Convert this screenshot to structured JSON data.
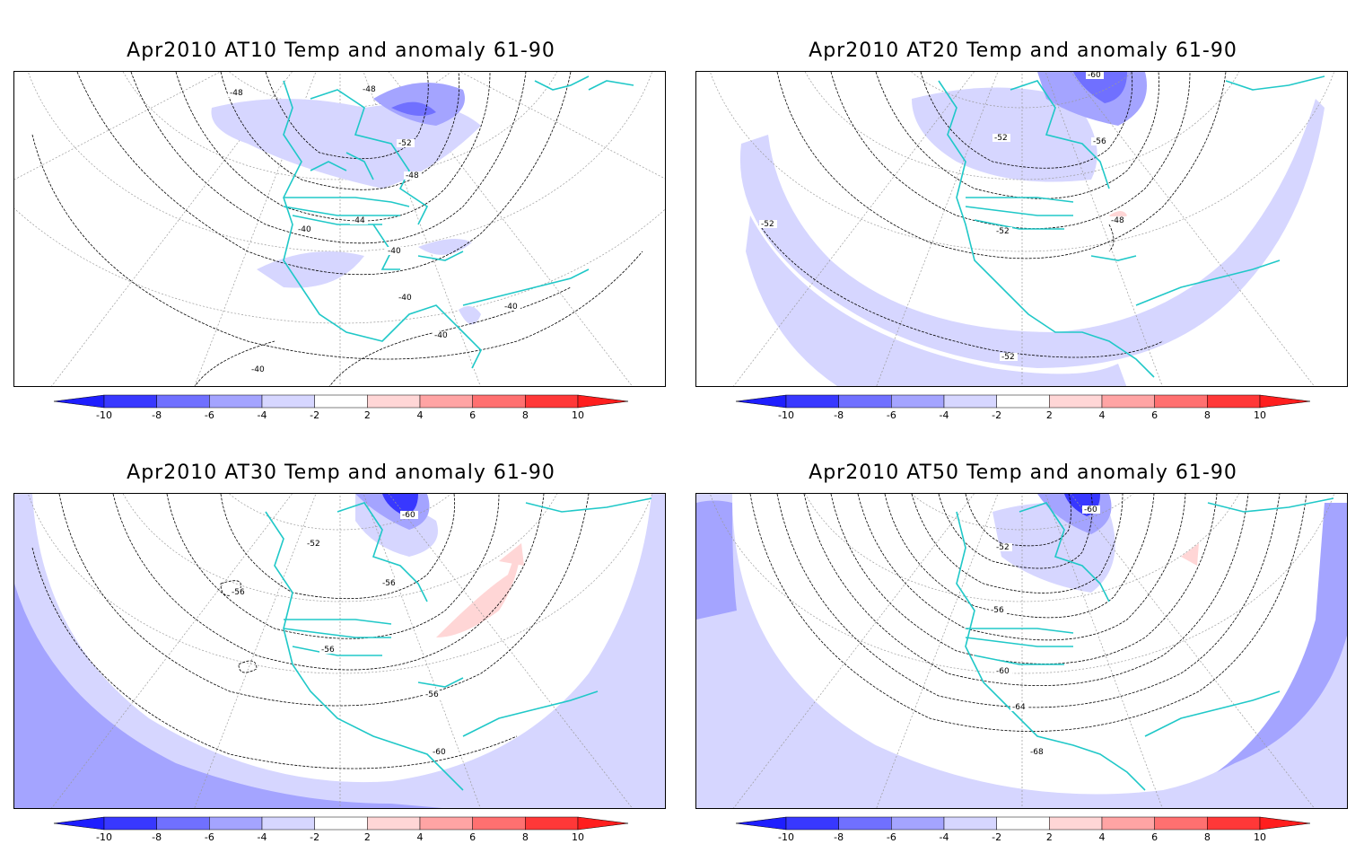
{
  "panels": [
    {
      "title": "Apr2010 AT10 Temp and anomaly 61-90",
      "contour_labels": [
        "-48",
        "-48",
        "-52",
        "-48",
        "-44",
        "-40",
        "-40",
        "-40",
        "-40",
        "-40",
        "-40"
      ]
    },
    {
      "title": "Apr2010 AT20 Temp and anomaly 61-90",
      "contour_labels": [
        "-60",
        "-52",
        "-56",
        "-52",
        "-52",
        "-48",
        "-52"
      ]
    },
    {
      "title": "Apr2010 AT30 Temp and anomaly 61-90",
      "contour_labels": [
        "-60",
        "-52",
        "-56",
        "-56",
        "-56",
        "-56",
        "-60"
      ]
    },
    {
      "title": "Apr2010 AT50 Temp and anomaly 61-90",
      "contour_labels": [
        "-60",
        "-52",
        "-56",
        "-60",
        "-64",
        "-68"
      ]
    }
  ],
  "colorbar": {
    "labels": [
      "-10",
      "-8",
      "-6",
      "-4",
      "-2",
      "2",
      "4",
      "6",
      "8",
      "10"
    ],
    "colors": [
      "#1e1eff",
      "#3838ff",
      "#7070ff",
      "#a4a4ff",
      "#d6d6ff",
      "#ffffff",
      "#ffd6d6",
      "#ffa4a4",
      "#ff7070",
      "#ff3838",
      "#ff1e1e"
    ]
  },
  "colors": {
    "coastline": "#20c8c8",
    "contour": "#000000",
    "gridline": "#9a9a9a"
  }
}
